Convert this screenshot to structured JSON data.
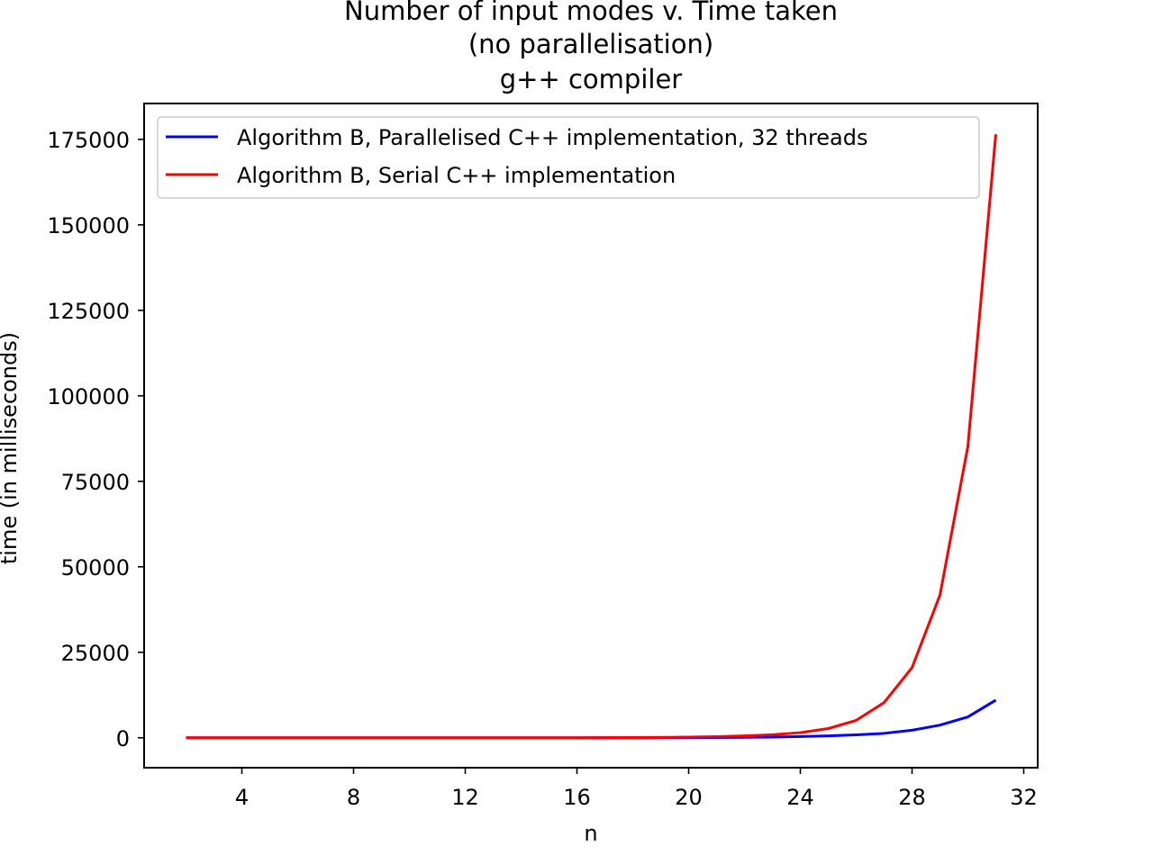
{
  "chart_data": {
    "type": "line",
    "title": [
      "Number of input modes v. Time taken",
      "(no parallelisation)",
      "g++ compiler"
    ],
    "xlabel": "n",
    "ylabel": "time (in milliseconds)",
    "xlim": [
      0.5,
      32.5
    ],
    "ylim": [
      -8750,
      185500
    ],
    "xticks": [
      4,
      8,
      12,
      16,
      20,
      24,
      28,
      32
    ],
    "yticks": [
      0,
      25000,
      50000,
      75000,
      100000,
      125000,
      150000,
      175000
    ],
    "grid": false,
    "legend_position": "top-left",
    "x": [
      2,
      3,
      4,
      5,
      6,
      7,
      8,
      9,
      10,
      11,
      12,
      13,
      14,
      15,
      16,
      17,
      18,
      19,
      20,
      21,
      22,
      23,
      24,
      25,
      26,
      27,
      28,
      29,
      30,
      31
    ],
    "series": [
      {
        "name": "Algorithm B, Parallelised C++ implementation, 32 threads",
        "color": "#0000ff",
        "values": [
          0,
          0,
          0,
          0,
          0,
          0,
          0,
          0,
          0,
          0,
          0,
          0,
          1,
          2,
          3,
          6,
          12,
          25,
          50,
          80,
          120,
          200,
          350,
          550,
          850,
          1300,
          2200,
          3700,
          6100,
          11000
        ]
      },
      {
        "name": "Algorithm B, Serial C++ implementation",
        "color": "#ff0000",
        "values": [
          0,
          0,
          0,
          0,
          0,
          0,
          0,
          0,
          0,
          0,
          1,
          2,
          4,
          8,
          16,
          30,
          60,
          110,
          200,
          330,
          550,
          900,
          1500,
          2700,
          5100,
          10300,
          20500,
          41700,
          85200,
          176500
        ]
      }
    ]
  }
}
